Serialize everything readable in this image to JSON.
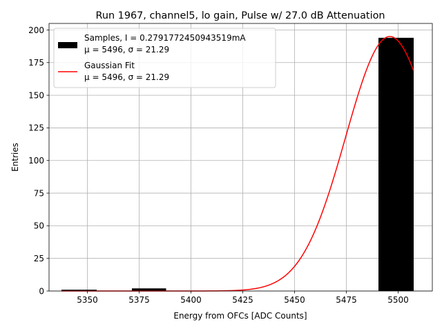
{
  "chart_data": {
    "type": "bar",
    "title": "Run 1967, channel5, lo gain, Pulse w/ 27.0 dB Attenuation",
    "xlabel": "Energy from OFCs [ADC Counts]",
    "ylabel": "Entries",
    "xlim": [
      5331.5,
      5516.5
    ],
    "ylim": [
      0,
      205
    ],
    "grid": true,
    "xticks": [
      5350,
      5375,
      5400,
      5425,
      5450,
      5475,
      5500
    ],
    "xtick_labels": [
      "5350",
      "5375",
      "5400",
      "5425",
      "5450",
      "5475",
      "5500"
    ],
    "yticks": [
      0,
      25,
      50,
      75,
      100,
      125,
      150,
      175,
      200
    ],
    "ytick_labels": [
      "0",
      "25",
      "50",
      "75",
      "100",
      "125",
      "150",
      "175",
      "200"
    ],
    "bars": [
      {
        "x0": 5337.5,
        "x1": 5354.5,
        "value": 1
      },
      {
        "x0": 5371.5,
        "x1": 5388.0,
        "value": 2
      },
      {
        "x0": 5490.5,
        "x1": 5507.5,
        "value": 194
      }
    ],
    "fit": {
      "type": "gaussian",
      "mu": 5496,
      "sigma": 21.29,
      "amplitude": 195,
      "x_range": [
        5337.5,
        5507.5
      ],
      "color": "#ff0000"
    },
    "bar_color": "#000000",
    "legend": {
      "position": "top-left",
      "entries": [
        {
          "label": "Samples, I = 0.2791772450943519mA",
          "sublabel": "μ = 5496, σ = 21.29",
          "kind": "patch"
        },
        {
          "label": "Gaussian Fit",
          "sublabel": "μ = 5496, σ = 21.29",
          "kind": "line"
        }
      ]
    }
  }
}
